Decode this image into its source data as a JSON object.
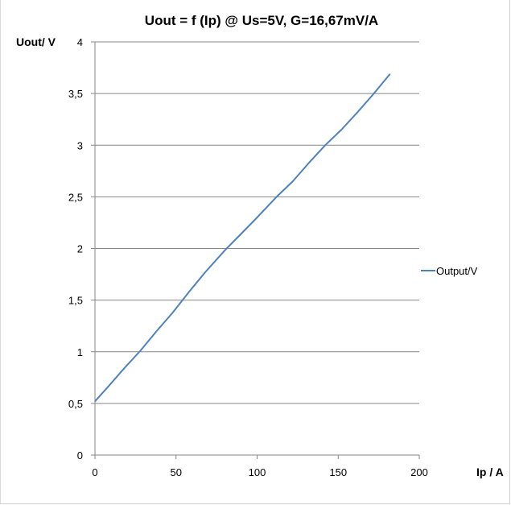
{
  "chart_data": {
    "type": "line",
    "title": "Uout = f (Ip) @ Us=5V, G=16,67mV/A",
    "xlabel": "Ip / A",
    "ylabel": "Uout/ V",
    "xlim": [
      0,
      200
    ],
    "ylim": [
      0,
      4
    ],
    "x_ticks": [
      0,
      50,
      100,
      150,
      200
    ],
    "y_ticks": [
      0,
      0.5,
      1,
      1.5,
      2,
      2.5,
      3,
      3.5,
      4
    ],
    "x_tick_labels": [
      "0",
      "50",
      "100",
      "150",
      "200"
    ],
    "y_tick_labels": [
      "0",
      "0,5",
      "1",
      "1,5",
      "2",
      "2,5",
      "3",
      "3,5",
      "4"
    ],
    "grid": "horizontal",
    "legend_position": "right",
    "series": [
      {
        "name": "Output/V",
        "color": "#4f81bd",
        "x": [
          0,
          8,
          18,
          28,
          38,
          48,
          58,
          68,
          80,
          90,
          100,
          112,
          122,
          132,
          142,
          152,
          162,
          172,
          182
        ],
        "y": [
          0.52,
          0.66,
          0.84,
          1.01,
          1.2,
          1.38,
          1.58,
          1.77,
          1.98,
          2.14,
          2.3,
          2.5,
          2.65,
          2.83,
          3.0,
          3.15,
          3.32,
          3.5,
          3.69
        ]
      }
    ]
  }
}
